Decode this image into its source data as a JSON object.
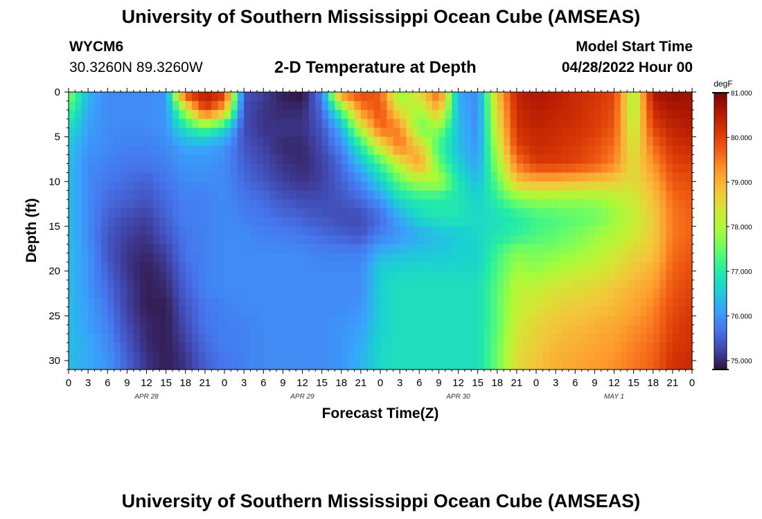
{
  "header": {
    "title": "University of Southern Mississippi Ocean Cube (AMSEAS)",
    "station_id": "WYCM6",
    "station_coords": "30.3260N  89.3260W",
    "plot_title": "2-D Temperature at Depth",
    "model_start_label": "Model Start Time",
    "model_start_value": "04/28/2022 Hour 00"
  },
  "footer": {
    "title": "University of Southern Mississippi Ocean Cube (AMSEAS)"
  },
  "chart_data": {
    "type": "heatmap",
    "xlabel": "Forecast Time(Z)",
    "ylabel": "Depth (ft)",
    "x_tick_labels": [
      "0",
      "3",
      "6",
      "9",
      "12",
      "15",
      "18",
      "21",
      "0",
      "3",
      "6",
      "9",
      "12",
      "15",
      "18",
      "21",
      "0",
      "3",
      "6",
      "9",
      "12",
      "15",
      "18",
      "21",
      "0",
      "3",
      "6",
      "9",
      "12",
      "15",
      "18",
      "21",
      "0"
    ],
    "day_labels": [
      "APR 28",
      "APR 29",
      "APR 30",
      "MAY 1"
    ],
    "xlim_hours": [
      0,
      96
    ],
    "y_ticks": [
      0,
      5,
      10,
      15,
      20,
      25,
      30
    ],
    "ylim_ft": [
      0,
      31
    ],
    "y_inverted": true,
    "colorbar": {
      "unit": "degF",
      "ticks": [
        "81.000",
        "80.000",
        "79.000",
        "78.000",
        "77.000",
        "76.000",
        "75.000"
      ],
      "range": [
        74.8,
        81.0
      ],
      "colors": [
        "#30123b",
        "#4145ab",
        "#4675ed",
        "#39a2fc",
        "#1bcfd4",
        "#24eca6",
        "#61fc6c",
        "#a4fc3b",
        "#d1e834",
        "#f3c63a",
        "#fe9b2d",
        "#f36315",
        "#d93806",
        "#b11901",
        "#7a0402"
      ]
    },
    "data": {
      "description_hours": [
        0,
        3,
        6,
        9,
        12,
        15,
        18,
        21,
        24,
        27,
        30,
        33,
        36,
        39,
        42,
        45,
        48,
        51,
        54,
        57,
        60,
        63,
        66,
        69,
        72,
        75,
        78,
        81,
        84,
        87,
        90,
        93,
        96
      ],
      "depths_ft": [
        0,
        2,
        4,
        6,
        8,
        10,
        12,
        14,
        16,
        18,
        20,
        22,
        24,
        26,
        28,
        30
      ],
      "values_degF": [
        [
          77.8,
          76.3,
          75.9,
          75.9,
          75.9,
          76.0,
          80.2,
          80.6,
          80.3,
          75.4,
          75.2,
          74.9,
          74.8,
          75.8,
          79.6,
          80.0,
          79.7,
          77.6,
          78.6,
          79.8,
          76.2,
          75.9,
          78.8,
          80.4,
          80.6,
          80.5,
          80.3,
          80.2,
          80.0,
          77.9,
          80.6,
          80.8,
          80.7
        ],
        [
          77.3,
          76.2,
          75.9,
          75.9,
          75.9,
          76.0,
          78.0,
          80.1,
          79.0,
          75.3,
          75.1,
          75.0,
          75.0,
          75.6,
          77.4,
          79.4,
          79.9,
          78.4,
          77.9,
          79.0,
          76.3,
          75.9,
          78.6,
          80.3,
          80.5,
          80.4,
          80.3,
          80.1,
          79.9,
          77.9,
          80.3,
          80.6,
          80.6
        ],
        [
          76.8,
          76.1,
          75.9,
          75.9,
          75.9,
          76.0,
          76.9,
          77.4,
          76.8,
          75.3,
          75.1,
          75.1,
          75.1,
          75.4,
          76.3,
          78.2,
          79.7,
          79.4,
          77.5,
          77.8,
          76.4,
          75.9,
          78.4,
          80.2,
          80.4,
          80.3,
          80.2,
          80.1,
          79.8,
          78.1,
          80.0,
          80.4,
          80.5
        ],
        [
          76.5,
          76.0,
          75.9,
          75.8,
          75.8,
          75.9,
          76.2,
          76.2,
          76.0,
          75.4,
          75.2,
          75.0,
          75.0,
          75.3,
          75.9,
          77.0,
          78.4,
          79.6,
          78.7,
          77.2,
          76.4,
          76.0,
          78.1,
          80.0,
          80.3,
          80.2,
          80.1,
          79.9,
          79.6,
          78.3,
          79.6,
          80.2,
          80.3
        ],
        [
          76.4,
          75.9,
          75.8,
          75.7,
          75.7,
          75.8,
          76.0,
          76.0,
          75.9,
          75.5,
          75.3,
          75.1,
          75.0,
          75.2,
          75.6,
          76.4,
          77.2,
          78.3,
          79.3,
          77.5,
          76.6,
          76.1,
          77.8,
          79.5,
          80.1,
          80.1,
          80.0,
          79.8,
          79.4,
          78.5,
          79.3,
          80.0,
          80.1
        ],
        [
          76.4,
          75.9,
          75.7,
          75.6,
          75.5,
          75.7,
          75.9,
          75.9,
          75.9,
          75.6,
          75.4,
          75.2,
          75.1,
          75.2,
          75.5,
          75.9,
          76.6,
          77.4,
          77.9,
          78.0,
          76.9,
          76.4,
          77.4,
          78.8,
          79.0,
          79.0,
          78.9,
          78.8,
          78.7,
          78.5,
          79.0,
          79.8,
          79.9
        ],
        [
          76.4,
          75.9,
          75.6,
          75.5,
          75.4,
          75.6,
          75.8,
          75.8,
          75.9,
          75.7,
          75.6,
          75.4,
          75.3,
          75.3,
          75.4,
          75.6,
          76.0,
          76.8,
          77.0,
          77.0,
          76.9,
          76.6,
          77.1,
          77.6,
          77.8,
          77.8,
          77.8,
          77.8,
          78.0,
          78.3,
          78.8,
          79.6,
          79.8
        ],
        [
          76.4,
          75.9,
          75.5,
          75.3,
          75.2,
          75.5,
          75.8,
          75.8,
          75.9,
          75.8,
          75.7,
          75.6,
          75.5,
          75.4,
          75.3,
          75.3,
          75.6,
          76.2,
          76.7,
          76.9,
          76.9,
          76.7,
          76.8,
          77.0,
          77.2,
          77.3,
          77.4,
          77.5,
          77.8,
          78.2,
          78.7,
          79.5,
          79.7
        ],
        [
          76.4,
          75.9,
          75.4,
          75.2,
          75.1,
          75.4,
          75.7,
          75.8,
          75.9,
          75.9,
          75.8,
          75.8,
          75.7,
          75.6,
          75.5,
          75.4,
          75.8,
          76.0,
          76.2,
          76.4,
          76.5,
          76.7,
          76.9,
          77.1,
          77.3,
          77.4,
          77.6,
          77.8,
          78.0,
          78.3,
          78.7,
          79.5,
          79.7
        ],
        [
          76.4,
          76.0,
          75.4,
          75.1,
          75.0,
          75.2,
          75.7,
          75.8,
          75.9,
          75.9,
          75.9,
          75.9,
          75.9,
          75.8,
          75.8,
          75.8,
          76.3,
          76.4,
          76.5,
          76.5,
          76.6,
          76.6,
          77.2,
          77.7,
          77.6,
          77.7,
          77.8,
          78.0,
          78.3,
          78.6,
          78.8,
          79.6,
          79.8
        ],
        [
          76.4,
          76.0,
          75.5,
          75.1,
          74.9,
          75.1,
          75.6,
          75.8,
          75.9,
          75.9,
          75.9,
          75.9,
          75.9,
          75.9,
          75.9,
          75.9,
          76.6,
          76.7,
          76.7,
          76.7,
          76.7,
          76.7,
          77.3,
          77.9,
          77.8,
          78.0,
          78.2,
          78.3,
          78.5,
          78.8,
          79.0,
          79.7,
          79.9
        ],
        [
          76.4,
          76.0,
          75.6,
          75.2,
          74.9,
          75.0,
          75.5,
          75.8,
          75.9,
          75.9,
          75.9,
          75.9,
          75.9,
          75.9,
          75.9,
          75.9,
          76.6,
          76.8,
          76.8,
          76.8,
          76.8,
          76.8,
          77.4,
          78.1,
          78.2,
          78.4,
          78.5,
          78.6,
          78.8,
          79.0,
          79.2,
          79.8,
          80.0
        ],
        [
          76.4,
          76.1,
          75.7,
          75.2,
          74.9,
          74.9,
          75.4,
          75.7,
          75.8,
          75.9,
          75.9,
          75.9,
          75.9,
          75.9,
          75.9,
          76.0,
          76.6,
          76.8,
          76.8,
          76.8,
          76.8,
          76.8,
          77.4,
          78.2,
          78.4,
          78.6,
          78.7,
          78.8,
          78.9,
          79.1,
          79.4,
          79.9,
          80.1
        ],
        [
          76.4,
          76.1,
          75.8,
          75.3,
          75.0,
          74.9,
          75.3,
          75.7,
          75.8,
          75.8,
          75.9,
          75.9,
          75.9,
          75.9,
          76.0,
          76.1,
          76.6,
          76.8,
          76.8,
          76.8,
          76.8,
          76.8,
          77.4,
          78.3,
          78.6,
          78.8,
          78.9,
          79.0,
          79.1,
          79.3,
          79.5,
          80.0,
          80.2
        ],
        [
          76.4,
          76.2,
          75.9,
          75.4,
          75.0,
          74.9,
          75.2,
          75.6,
          75.8,
          75.8,
          75.9,
          75.9,
          75.9,
          75.9,
          76.0,
          76.2,
          76.7,
          76.8,
          76.8,
          76.8,
          76.8,
          76.8,
          77.5,
          78.4,
          78.7,
          78.9,
          79.0,
          79.1,
          79.2,
          79.4,
          79.6,
          80.1,
          80.2
        ],
        [
          76.4,
          76.2,
          76.0,
          75.5,
          75.1,
          74.9,
          75.1,
          75.5,
          75.7,
          75.8,
          75.9,
          75.9,
          75.9,
          75.9,
          76.0,
          76.3,
          76.7,
          76.8,
          76.8,
          76.8,
          76.8,
          76.8,
          77.5,
          78.5,
          78.8,
          79.0,
          79.1,
          79.2,
          79.3,
          79.5,
          79.7,
          80.2,
          80.3
        ]
      ]
    }
  }
}
